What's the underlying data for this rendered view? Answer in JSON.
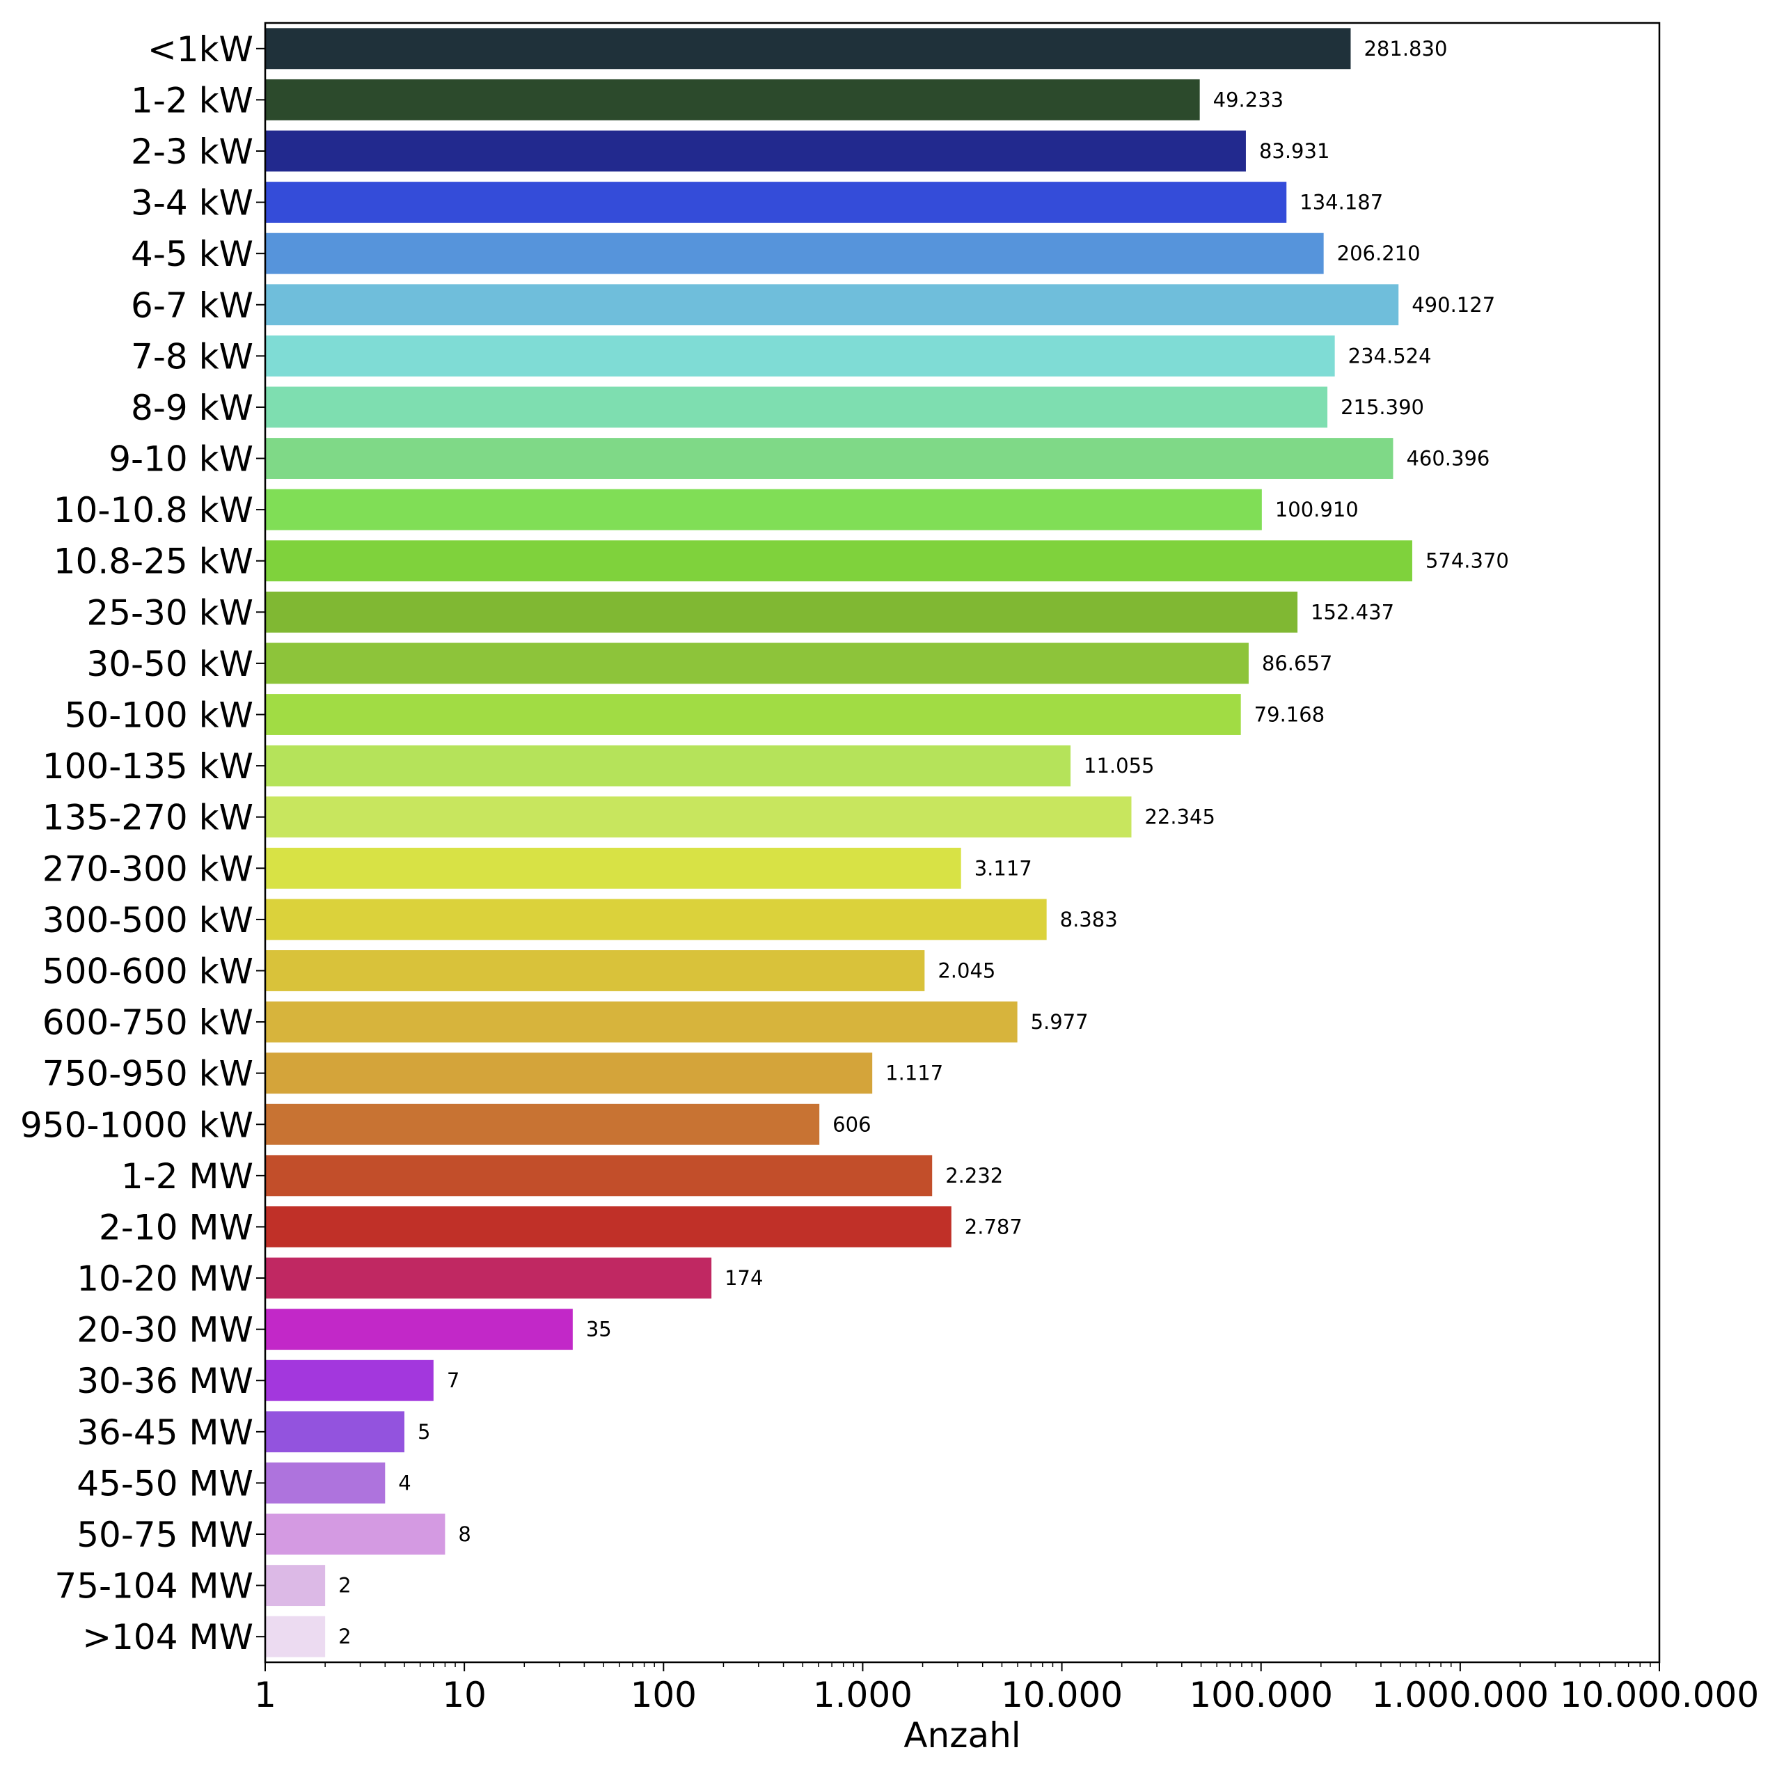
{
  "chart_data": {
    "type": "bar",
    "orientation": "horizontal",
    "xscale": "log",
    "xlim": [
      1,
      10000000
    ],
    "xlabel": "Anzahl",
    "ylabel": "",
    "title": "",
    "grid": false,
    "legend": "none",
    "xticks": [
      1,
      10,
      100,
      1000,
      10000,
      100000,
      1000000,
      10000000
    ],
    "xtick_labels": [
      "1",
      "10",
      "100",
      "1.000",
      "10.000",
      "100.000",
      "1.000.000",
      "10.000.000"
    ],
    "categories": [
      "<1kW",
      "1-2 kW",
      "2-3 kW",
      "3-4 kW",
      "4-5 kW",
      "6-7 kW",
      "7-8 kW",
      "8-9 kW",
      "9-10 kW",
      "10-10.8 kW",
      "10.8-25 kW",
      "25-30 kW",
      "30-50 kW",
      "50-100 kW",
      "100-135 kW",
      "135-270 kW",
      "270-300 kW",
      "300-500 kW",
      "500-600 kW",
      "600-750 kW",
      "750-950 kW",
      "950-1000 kW",
      "1-2 MW",
      "2-10 MW",
      "10-20 MW",
      "20-30 MW",
      "30-36 MW",
      "36-45 MW",
      "45-50 MW",
      "50-75 MW",
      "75-104 MW",
      ">104 MW"
    ],
    "values": [
      281830,
      49233,
      83931,
      134187,
      206210,
      490127,
      234524,
      215390,
      460396,
      100910,
      574370,
      152437,
      86657,
      79168,
      11055,
      22345,
      3117,
      8383,
      2045,
      5977,
      1117,
      606,
      2232,
      2787,
      174,
      35,
      7,
      5,
      4,
      8,
      2,
      2
    ],
    "value_labels": [
      "281.830",
      "49.233",
      "83.931",
      "134.187",
      "206.210",
      "490.127",
      "234.524",
      "215.390",
      "460.396",
      "100.910",
      "574.370",
      "152.437",
      "86.657",
      "79.168",
      "11.055",
      "22.345",
      "3.117",
      "8.383",
      "2.045",
      "5.977",
      "1.117",
      "606",
      "2.232",
      "2.787",
      "174",
      "35",
      "7",
      "5",
      "4",
      "8",
      "2",
      "2"
    ],
    "colors": [
      "#1f313a",
      "#2c4a2c",
      "#22298e",
      "#344cd9",
      "#5694db",
      "#6fbedb",
      "#7fdcd5",
      "#7edeb0",
      "#7fd987",
      "#80de56",
      "#7fd23c",
      "#80b833",
      "#8dc43a",
      "#a1dc44",
      "#b5e35a",
      "#c8e65e",
      "#d8e245",
      "#dbd23b",
      "#d9c23a",
      "#d7b43c",
      "#d4a43a",
      "#c87333",
      "#c24e2a",
      "#c03028",
      "#c02862",
      "#c228c8",
      "#a337dd",
      "#9353de",
      "#ae73dd",
      "#d49ae2",
      "#dcb9e6",
      "#ecdbf1"
    ]
  }
}
